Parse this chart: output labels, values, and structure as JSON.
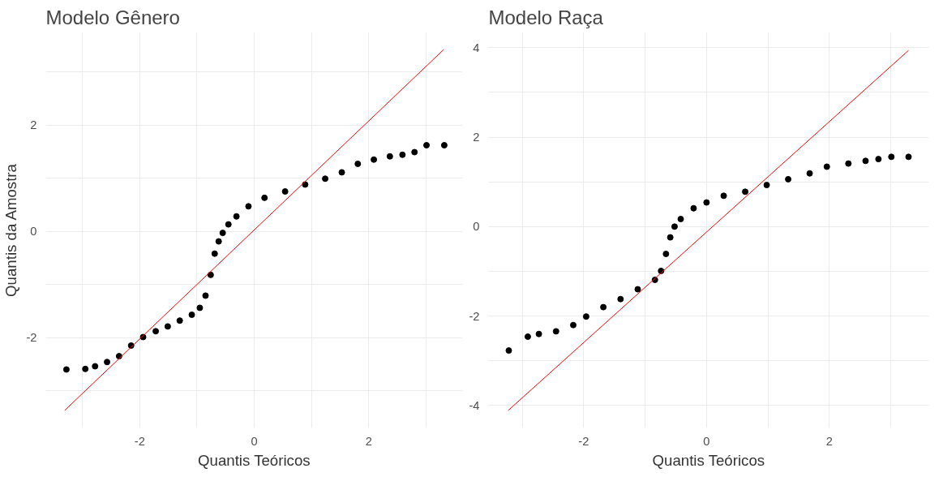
{
  "chart_data": [
    {
      "type": "scatter",
      "title": "Modelo Gênero",
      "xlabel": "Quantis Teóricos",
      "ylabel": "Quantis da Amostra",
      "xlim": [
        -3.64,
        3.64
      ],
      "ylim": [
        -3.7,
        3.75
      ],
      "xticks": [
        {
          "value": -3,
          "label": null
        },
        -2,
        {
          "value": -1,
          "label": null
        },
        0,
        {
          "value": 1,
          "label": null
        },
        2,
        {
          "value": 3,
          "label": null
        }
      ],
      "yticks": [
        {
          "value": -3,
          "label": null
        },
        -2,
        {
          "value": -1,
          "label": null
        },
        0,
        {
          "value": 1,
          "label": null
        },
        2,
        {
          "value": 3,
          "label": null
        }
      ],
      "grid": true,
      "series": [
        {
          "marker": "circle",
          "color": "#000000",
          "x": [
            -3.28,
            -2.95,
            -2.78,
            -2.57,
            -2.36,
            -2.15,
            -1.94,
            -1.72,
            -1.51,
            -1.3,
            -1.09,
            -0.95,
            -0.85,
            -0.76,
            -0.69,
            -0.62,
            -0.55,
            -0.45,
            -0.31,
            -0.1,
            0.18,
            0.54,
            0.89,
            1.24,
            1.53,
            1.81,
            2.09,
            2.37,
            2.59,
            2.8,
            3.01,
            3.32
          ],
          "values": [
            -2.6,
            -2.59,
            -2.54,
            -2.46,
            -2.35,
            -2.15,
            -1.99,
            -1.88,
            -1.79,
            -1.68,
            -1.57,
            -1.44,
            -1.21,
            -0.82,
            -0.42,
            -0.19,
            -0.03,
            0.13,
            0.28,
            0.47,
            0.63,
            0.75,
            0.88,
            0.99,
            1.11,
            1.27,
            1.35,
            1.41,
            1.44,
            1.49,
            1.62,
            1.62
          ]
        },
        {
          "type": "line",
          "color": "#ff0000",
          "x": [
            -3.31,
            3.31
          ],
          "values": [
            -3.37,
            3.42
          ]
        }
      ]
    },
    {
      "type": "scatter",
      "title": "Modelo Raça",
      "xlabel": "Quantis Teóricos",
      "xlim": [
        -3.55,
        3.62
      ],
      "ylim": [
        -4.5,
        4.35
      ],
      "xticks": [
        {
          "value": -3,
          "label": null
        },
        -2,
        {
          "value": -1,
          "label": null
        },
        0,
        {
          "value": 1,
          "label": null
        },
        2,
        {
          "value": 3,
          "label": null
        }
      ],
      "yticks": [
        -4,
        {
          "value": -3,
          "label": null
        },
        -2,
        {
          "value": -1,
          "label": null
        },
        0,
        {
          "value": 1,
          "label": null
        },
        2,
        {
          "value": 3,
          "label": null
        },
        4
      ],
      "grid": true,
      "series": [
        {
          "marker": "circle",
          "color": "#000000",
          "x": [
            -3.22,
            -2.91,
            -2.73,
            -2.45,
            -2.17,
            -1.96,
            -1.68,
            -1.4,
            -1.12,
            -0.84,
            -0.74,
            -0.66,
            -0.59,
            -0.52,
            -0.42,
            -0.21,
            0,
            0.28,
            0.63,
            0.98,
            1.33,
            1.68,
            1.96,
            2.31,
            2.59,
            2.8,
            3.01,
            3.29
          ],
          "values": [
            -2.77,
            -2.46,
            -2.4,
            -2.34,
            -2.2,
            -2.01,
            -1.8,
            -1.62,
            -1.4,
            -1.19,
            -0.99,
            -0.61,
            -0.24,
            0,
            0.17,
            0.41,
            0.54,
            0.69,
            0.78,
            0.93,
            1.06,
            1.19,
            1.34,
            1.41,
            1.47,
            1.51,
            1.56,
            1.56
          ]
        },
        {
          "type": "line",
          "color": "#ff0000",
          "x": [
            -3.23,
            3.29
          ],
          "values": [
            -4.11,
            3.94
          ]
        }
      ]
    }
  ]
}
